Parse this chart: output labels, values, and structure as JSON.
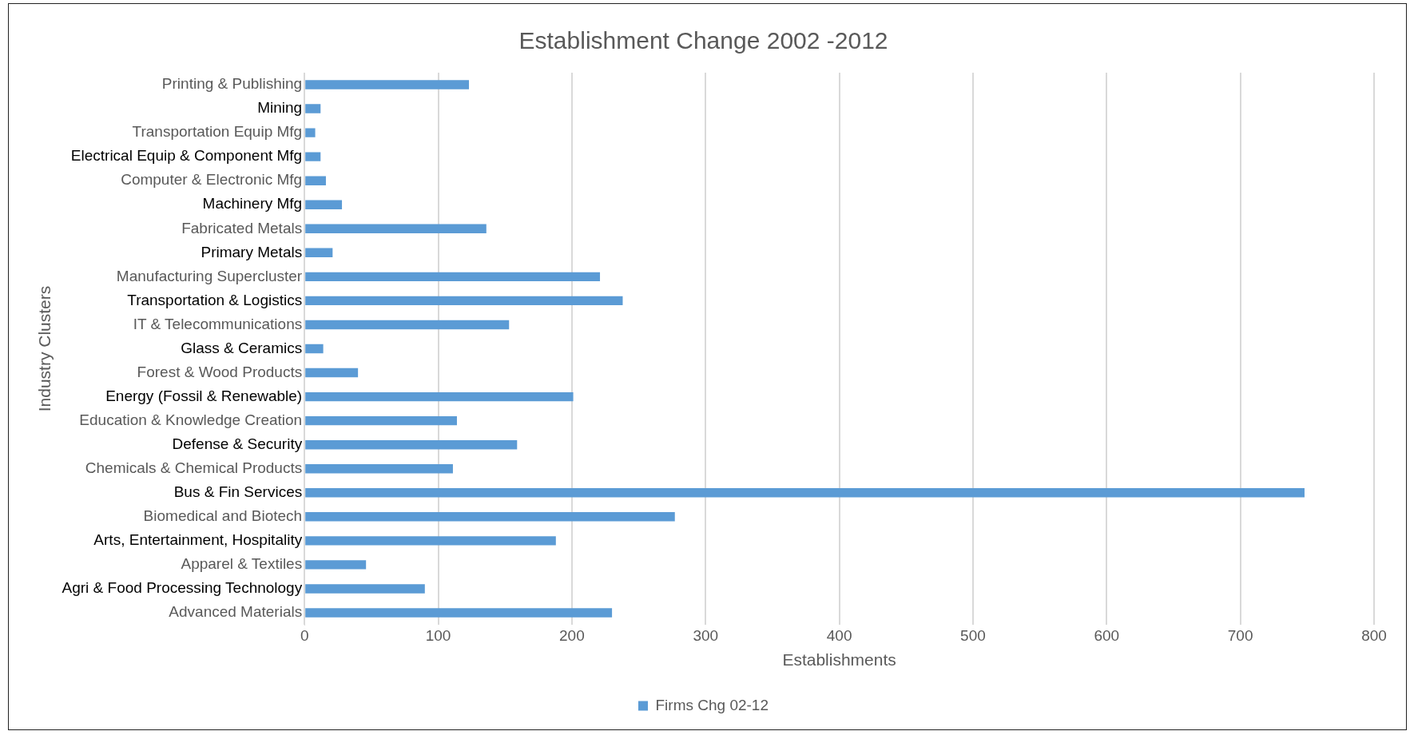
{
  "chart_data": {
    "type": "bar",
    "orientation": "horizontal",
    "title": "Establishment Change 2002 -2012",
    "xlabel": "Establishments",
    "ylabel": "Industry Clusters",
    "categories": [
      "Printing & Publishing",
      "Mining",
      "Transportation Equip Mfg",
      "Electrical Equip & Component Mfg",
      "Computer & Electronic Mfg",
      "Machinery Mfg",
      "Fabricated Metals",
      "Primary Metals",
      "Manufacturing Supercluster",
      "Transportation & Logistics",
      "IT & Telecommunications",
      "Glass & Ceramics",
      "Forest & Wood Products",
      "Energy (Fossil & Renewable)",
      "Education & Knowledge Creation",
      "Defense & Security",
      "Chemicals & Chemical Products",
      "Bus & Fin Services",
      "Biomedical and Biotech",
      "Arts, Entertainment, Hospitality",
      "Apparel & Textiles",
      "Agri & Food Processing Technology",
      "Advanced Materials"
    ],
    "series": [
      {
        "name": "Firms Chg 02-12",
        "color": "#5b9bd5",
        "values": [
          123,
          12,
          8,
          12,
          16,
          28,
          136,
          21,
          221,
          238,
          153,
          14,
          40,
          201,
          114,
          159,
          111,
          748,
          277,
          188,
          46,
          90,
          230
        ]
      }
    ],
    "xlim": [
      0,
      800
    ],
    "xticks": [
      0,
      100,
      200,
      300,
      400,
      500,
      600,
      700,
      800
    ],
    "grid": "x",
    "legend": "bottom"
  }
}
